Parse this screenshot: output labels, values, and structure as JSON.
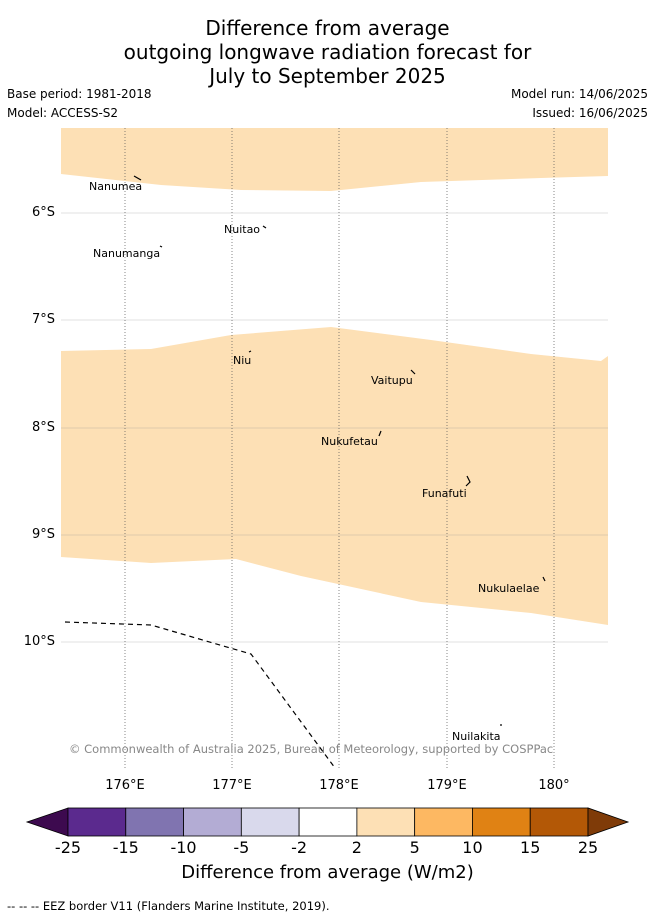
{
  "title": {
    "line1": "Difference from average",
    "line2": "outgoing longwave radiation forecast for",
    "line3": "July to September 2025"
  },
  "meta": {
    "base_period": "Base period: 1981-2018",
    "model": "Model: ACCESS-S2",
    "model_run": "Model run: 14/06/2025",
    "issued": "Issued: 16/06/2025"
  },
  "axes": {
    "lat_ticks": [
      "6°S",
      "7°S",
      "8°S",
      "9°S",
      "10°S"
    ],
    "lon_ticks": [
      "176°E",
      "177°E",
      "178°E",
      "179°E",
      "180°"
    ]
  },
  "places": [
    "Nanumea",
    "Nuitao",
    "Nanumanga",
    "Niu",
    "Vaitupu",
    "Nukufetau",
    "Funafuti",
    "Nukulaelae",
    "Nuilakita"
  ],
  "copyright": "© Commonwealth of Australia 2025, Bureau of Meteorology, supported by COSPPac",
  "colorbar": {
    "ticks": [
      "-25",
      "-15",
      "-10",
      "-5",
      "-2",
      "2",
      "5",
      "10",
      "15",
      "25"
    ],
    "colors": [
      "#3d0a4f",
      "#5b2a8e",
      "#8074b0",
      "#b3acd4",
      "#d9d9ec",
      "#ffffff",
      "#fde0b5",
      "#fdb862",
      "#e08214",
      "#b35806",
      "#7f3b08"
    ],
    "title": "Difference from average (W/m2)"
  },
  "footer": "-- -- -- EEZ border V11 (Flanders Marine Institute, 2019).",
  "colors": {
    "band": "#fde0b5",
    "grid": "#cccccc",
    "meridian": "#555555",
    "eez": "#000000"
  }
}
